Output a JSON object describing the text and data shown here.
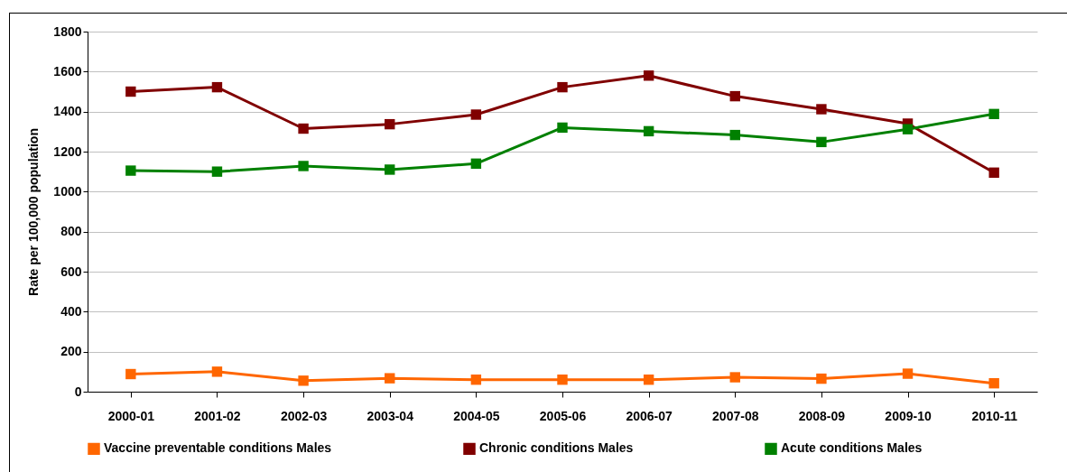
{
  "chart_data": {
    "type": "line",
    "ylabel": "Rate per 100,000 population",
    "categories": [
      "2000-01",
      "2001-02",
      "2002-03",
      "2003-04",
      "2004-05",
      "2005-06",
      "2006-07",
      "2007-08",
      "2008-09",
      "2009-10",
      "2010-11"
    ],
    "series": [
      {
        "name": "Vaccine preventable conditions Males",
        "color": "#ff6600",
        "values": [
          88,
          100,
          55,
          67,
          60,
          60,
          60,
          72,
          65,
          90,
          42
        ]
      },
      {
        "name": "Chronic conditions Males",
        "color": "#800000",
        "values": [
          1500,
          1522,
          1315,
          1337,
          1385,
          1522,
          1580,
          1477,
          1412,
          1340,
          1095
        ]
      },
      {
        "name": "Acute conditions Males",
        "color": "#008000",
        "values": [
          1105,
          1100,
          1128,
          1110,
          1140,
          1320,
          1302,
          1283,
          1248,
          1312,
          1388
        ]
      }
    ],
    "ylim": [
      0,
      1800
    ],
    "yticks": [
      0,
      200,
      400,
      600,
      800,
      1000,
      1200,
      1400,
      1600,
      1800
    ],
    "grid": "y",
    "legend": "bottom",
    "marker": "square",
    "line_style": "solid"
  }
}
